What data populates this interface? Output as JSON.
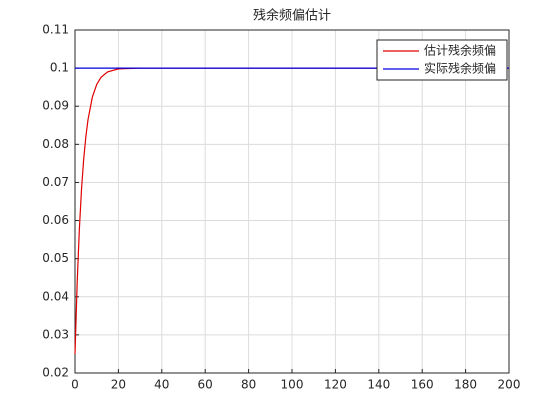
{
  "chart_data": {
    "type": "line",
    "title": "残余频偏估计",
    "series": [
      {
        "name": "估计残余频偏",
        "color": "#e00000",
        "x": [
          0,
          1,
          2,
          3,
          4,
          5,
          6,
          8,
          10,
          12,
          15,
          20,
          25,
          30,
          40,
          60,
          100,
          150,
          200
        ],
        "values": [
          0.025,
          0.0437,
          0.0576,
          0.0682,
          0.0761,
          0.082,
          0.0865,
          0.0924,
          0.0957,
          0.0976,
          0.099,
          0.0998,
          0.0999,
          0.1,
          0.1,
          0.1,
          0.1,
          0.1,
          0.1
        ]
      },
      {
        "name": "实际残余频偏",
        "color": "#0000e0",
        "x": [
          0,
          200
        ],
        "values": [
          0.1,
          0.1
        ]
      }
    ],
    "xlim": [
      0,
      200
    ],
    "xticks": [
      0,
      20,
      40,
      60,
      80,
      100,
      120,
      140,
      160,
      180,
      200
    ],
    "ylim": [
      0.02,
      0.11
    ],
    "yticks": [
      0.02,
      0.03,
      0.04,
      0.05,
      0.06,
      0.07,
      0.08,
      0.09,
      0.1,
      0.11
    ],
    "grid": true,
    "legend": "top-right"
  }
}
